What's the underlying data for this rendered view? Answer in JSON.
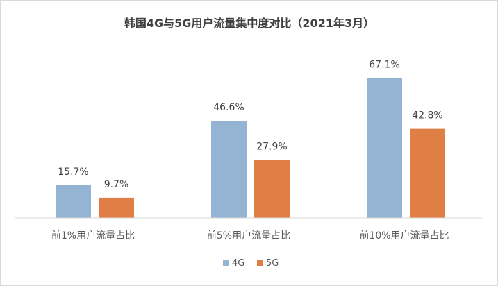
{
  "chart_data": {
    "type": "bar",
    "title": "韩国4G与5G用户流量集中度对比（2021年3月）",
    "categories": [
      "前1%用户流量占比",
      "前5%用户流量占比",
      "前10%用户流量占比"
    ],
    "series": [
      {
        "name": "4G",
        "values": [
          15.7,
          46.6,
          67.1
        ],
        "labels": [
          "15.7%",
          "46.6%",
          "67.1%"
        ],
        "color": "#95b3d3"
      },
      {
        "name": "5G",
        "values": [
          9.7,
          27.9,
          42.8
        ],
        "labels": [
          "9.7%",
          "27.9%",
          "42.8%"
        ],
        "color": "#e07f45"
      }
    ],
    "ylim": [
      0,
      80
    ],
    "grid": false,
    "legend_position": "bottom"
  }
}
